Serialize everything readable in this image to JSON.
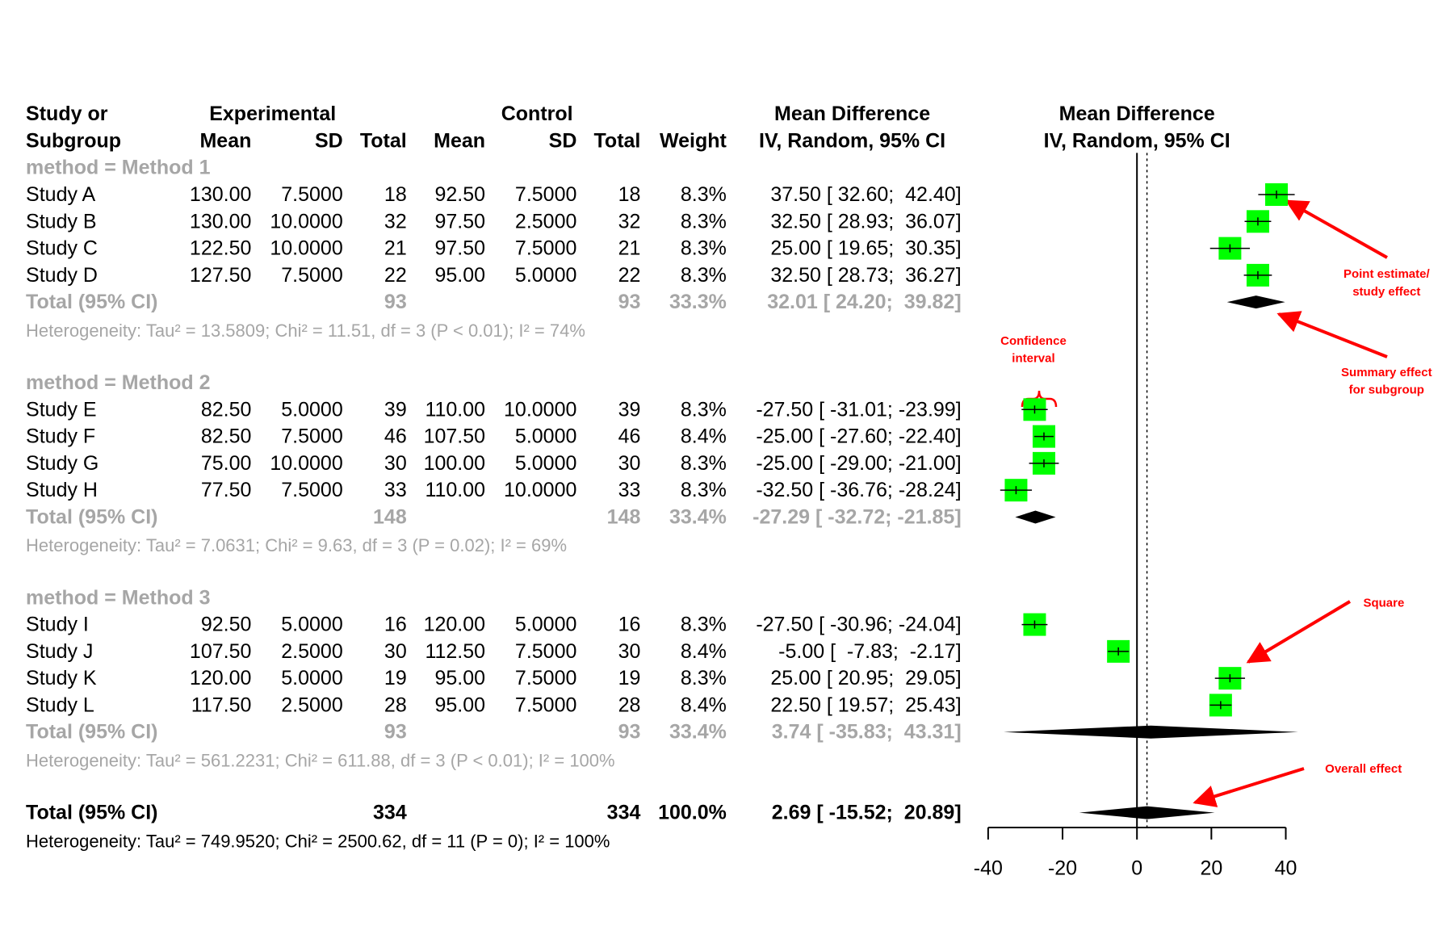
{
  "chart_data": {
    "type": "forest",
    "header": {
      "study": [
        "Study or",
        "Subgroup"
      ],
      "experimental": "Experimental",
      "control": "Control",
      "columns": [
        "Mean",
        "SD",
        "Total",
        "Mean",
        "SD",
        "Total",
        "Weight"
      ],
      "effect": [
        "Mean Difference",
        "IV, Random, 95% CI"
      ]
    },
    "plot_title": [
      "Mean Difference",
      "IV, Random, 95% CI"
    ],
    "groups": [
      {
        "label": "method = Method 1",
        "studies": [
          {
            "name": "Study A",
            "cells": [
              "130.00",
              "7.5000",
              "18",
              "92.50",
              "7.5000",
              "18",
              "8.3%"
            ],
            "md": 37.5,
            "lower": 32.6,
            "upper": 42.4,
            "ci_label": "37.50 [ 32.60;  42.40]"
          },
          {
            "name": "Study B",
            "cells": [
              "130.00",
              "10.0000",
              "32",
              "97.50",
              "2.5000",
              "32",
              "8.3%"
            ],
            "md": 32.5,
            "lower": 28.93,
            "upper": 36.07,
            "ci_label": "32.50 [ 28.93;  36.07]"
          },
          {
            "name": "Study C",
            "cells": [
              "122.50",
              "10.0000",
              "21",
              "97.50",
              "7.5000",
              "21",
              "8.3%"
            ],
            "md": 25,
            "lower": 19.65,
            "upper": 30.35,
            "ci_label": "25.00 [ 19.65;  30.35]"
          },
          {
            "name": "Study D",
            "cells": [
              "127.50",
              "7.5000",
              "22",
              "95.00",
              "5.0000",
              "22",
              "8.3%"
            ],
            "md": 32.5,
            "lower": 28.73,
            "upper": 36.27,
            "ci_label": "32.50 [ 28.73;  36.27]"
          }
        ],
        "total": {
          "name": "Total (95% CI)",
          "cells": [
            "93",
            "93",
            "33.3%"
          ],
          "md": 32.01,
          "lower": 24.2,
          "upper": 39.82,
          "ci_label": "32.01 [ 24.20;  39.82]"
        },
        "heterogeneity": "Heterogeneity: Tau² = 13.5809; Chi² = 11.51, df = 3 (P < 0.01); I² = 74%"
      },
      {
        "label": "method = Method 2",
        "studies": [
          {
            "name": "Study E",
            "cells": [
              "82.50",
              "5.0000",
              "39",
              "110.00",
              "10.0000",
              "39",
              "8.3%"
            ],
            "md": -27.5,
            "lower": -31.01,
            "upper": -23.99,
            "ci_label": "-27.50 [ -31.01; -23.99]"
          },
          {
            "name": "Study F",
            "cells": [
              "82.50",
              "7.5000",
              "46",
              "107.50",
              "5.0000",
              "46",
              "8.4%"
            ],
            "md": -25,
            "lower": -27.6,
            "upper": -22.4,
            "ci_label": "-25.00 [ -27.60; -22.40]"
          },
          {
            "name": "Study G",
            "cells": [
              "75.00",
              "10.0000",
              "30",
              "100.00",
              "5.0000",
              "30",
              "8.3%"
            ],
            "md": -25,
            "lower": -29,
            "upper": -21,
            "ci_label": "-25.00 [ -29.00; -21.00]"
          },
          {
            "name": "Study H",
            "cells": [
              "77.50",
              "7.5000",
              "33",
              "110.00",
              "10.0000",
              "33",
              "8.3%"
            ],
            "md": -32.5,
            "lower": -36.76,
            "upper": -28.24,
            "ci_label": "-32.50 [ -36.76; -28.24]"
          }
        ],
        "total": {
          "name": "Total (95% CI)",
          "cells": [
            "148",
            "148",
            "33.4%"
          ],
          "md": -27.29,
          "lower": -32.72,
          "upper": -21.85,
          "ci_label": "-27.29 [ -32.72; -21.85]"
        },
        "heterogeneity": "Heterogeneity: Tau² = 7.0631; Chi² = 9.63, df = 3 (P = 0.02); I² = 69%"
      },
      {
        "label": "method = Method 3",
        "studies": [
          {
            "name": "Study I",
            "cells": [
              "92.50",
              "5.0000",
              "16",
              "120.00",
              "5.0000",
              "16",
              "8.3%"
            ],
            "md": -27.5,
            "lower": -30.96,
            "upper": -24.04,
            "ci_label": "-27.50 [ -30.96; -24.04]"
          },
          {
            "name": "Study J",
            "cells": [
              "107.50",
              "2.5000",
              "30",
              "112.50",
              "7.5000",
              "30",
              "8.4%"
            ],
            "md": -5,
            "lower": -7.83,
            "upper": -2.17,
            "ci_label": "-5.00 [  -7.83;  -2.17]"
          },
          {
            "name": "Study K",
            "cells": [
              "120.00",
              "5.0000",
              "19",
              "95.00",
              "7.5000",
              "19",
              "8.3%"
            ],
            "md": 25,
            "lower": 20.95,
            "upper": 29.05,
            "ci_label": "25.00 [ 20.95;  29.05]"
          },
          {
            "name": "Study L",
            "cells": [
              "117.50",
              "2.5000",
              "28",
              "95.00",
              "7.5000",
              "28",
              "8.4%"
            ],
            "md": 22.5,
            "lower": 19.57,
            "upper": 25.43,
            "ci_label": "22.50 [ 19.57;  25.43]"
          }
        ],
        "total": {
          "name": "Total (95% CI)",
          "cells": [
            "93",
            "93",
            "33.4%"
          ],
          "md": 3.74,
          "lower": -35.83,
          "upper": 43.31,
          "ci_label": "3.74 [ -35.83;  43.31]"
        },
        "heterogeneity": "Heterogeneity: Tau² = 561.2231; Chi² = 611.88, df = 3 (P < 0.01); I² = 100%"
      }
    ],
    "overall": {
      "name": "Total (95% CI)",
      "cells": [
        "334",
        "334",
        "100.0%"
      ],
      "md": 2.69,
      "lower": -15.52,
      "upper": 20.89,
      "ci_label": "2.69 [ -15.52;  20.89]",
      "heterogeneity": "Heterogeneity: Tau² = 749.9520; Chi² = 2500.62, df = 11 (P = 0); I² = 100%"
    },
    "xlim": [
      -40,
      40
    ],
    "xticks": [
      -40,
      -20,
      0,
      20,
      40
    ],
    "square_color": "#00ff00",
    "annotations": {
      "point_estimate": [
        "Point estimate/",
        "study effect"
      ],
      "summary_effect": [
        "Summary effect",
        "for subgroup"
      ],
      "confidence_interval": [
        "Confidence",
        "interval"
      ],
      "square": "Square",
      "overall_effect": "Overall effect"
    }
  }
}
